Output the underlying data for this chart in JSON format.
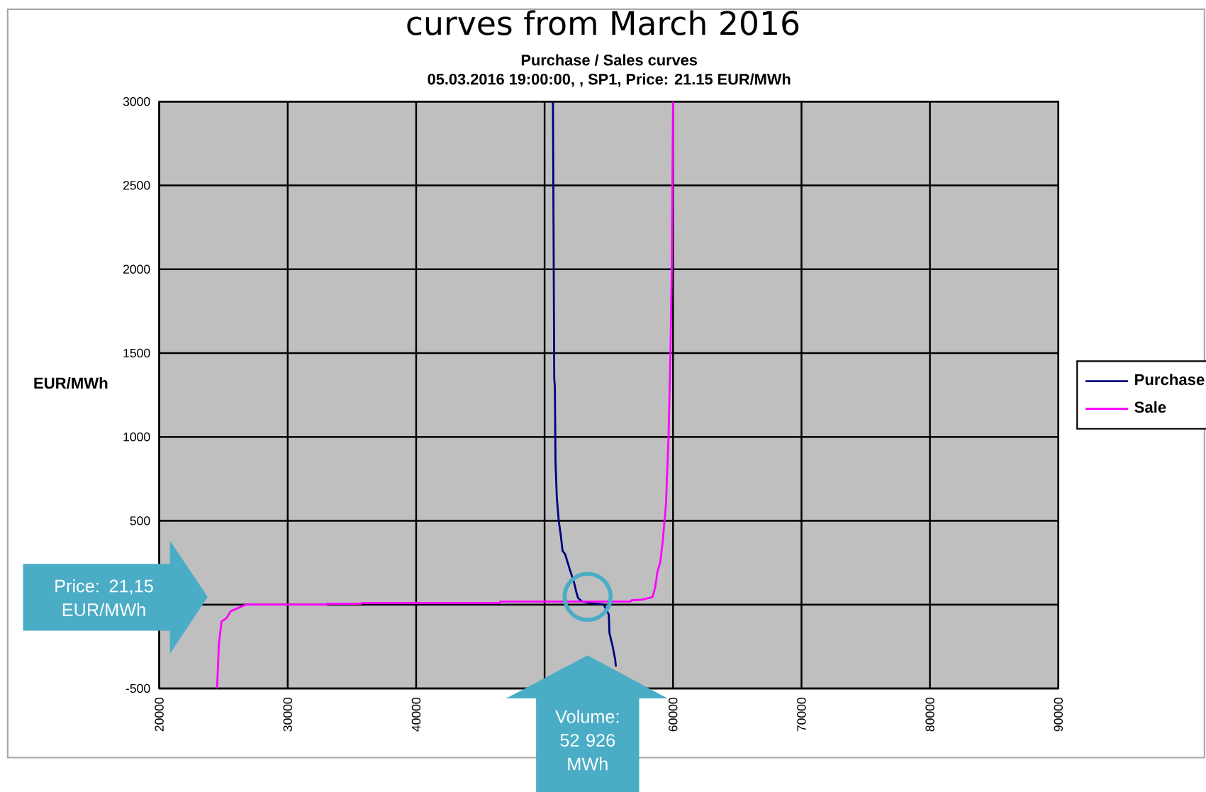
{
  "chart_data": {
    "type": "line",
    "title": "curves from March 2016",
    "subtitle": [
      "Purchase / Sales curves",
      "05.03.2016 19:00:00,  , SP1, Price: 21.15 EUR/MWh"
    ],
    "ylabel": "EUR/MWh",
    "xlim": [
      20000,
      90000
    ],
    "xticks": [
      20000,
      30000,
      40000,
      {
        "value": 50000,
        "label": null
      },
      60000,
      70000,
      80000,
      90000
    ],
    "ylim": [
      -500,
      3000
    ],
    "yticks": [
      -500,
      {
        "value": 0,
        "label": null
      },
      500,
      1000,
      1500,
      2000,
      2500,
      3000
    ],
    "grid": true,
    "legend": "right",
    "series": [
      {
        "name": "Purchase",
        "color": "#000080",
        "x": [
          50650,
          50700,
          50750,
          50800,
          50850,
          50950,
          51100,
          51250,
          51400,
          51600,
          51800,
          52000,
          52300,
          52450,
          52600,
          52900,
          53500,
          54600,
          54800,
          55000,
          55050,
          55300,
          55500,
          55550
        ],
        "values": [
          3000,
          2200,
          1350,
          1300,
          850,
          640,
          500,
          420,
          320,
          300,
          250,
          200,
          130,
          80,
          40,
          20,
          10,
          0,
          -30,
          -60,
          -170,
          -250,
          -330,
          -370
        ]
      },
      {
        "name": "Sale",
        "color": "#ff00ff",
        "x": [
          24500,
          24650,
          24850,
          25250,
          25550,
          26150,
          26750,
          33000,
          33050,
          35700,
          35750,
          46500,
          46550,
          56700,
          56750,
          57600,
          58400,
          58600,
          58800,
          59000,
          59200,
          59450,
          59650,
          59800,
          59900,
          60000
        ],
        "values": [
          -500,
          -230,
          -100,
          -80,
          -40,
          -20,
          0,
          0,
          5,
          5,
          10,
          10,
          18,
          18,
          25,
          30,
          45,
          100,
          200,
          250,
          380,
          600,
          1000,
          1500,
          2000,
          3000
        ]
      }
    ],
    "annotations": [
      "Price: 21,15 EUR/MWh",
      "Volume: 52 926 MWh"
    ]
  }
}
